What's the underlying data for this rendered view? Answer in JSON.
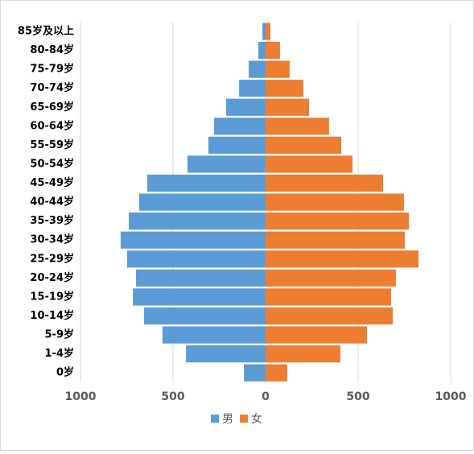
{
  "chart_data": {
    "type": "pyramid",
    "categories": [
      "85岁及以上",
      "80-84岁",
      "75-79岁",
      "70-74岁",
      "65-69岁",
      "60-64岁",
      "55-59岁",
      "50-54岁",
      "45-49岁",
      "40-44岁",
      "35-39岁",
      "30-34岁",
      "25-29岁",
      "20-24岁",
      "15-19岁",
      "10-14岁",
      "5-9岁",
      "1-4岁",
      "0岁"
    ],
    "series": [
      {
        "name": "男",
        "color": "#5b9bd5",
        "values": [
          -17,
          -39,
          -91,
          -143,
          -213,
          -278,
          -309,
          -422,
          -639,
          -683,
          -739,
          -783,
          -748,
          -700,
          -717,
          -657,
          -557,
          -430,
          -117
        ]
      },
      {
        "name": "女",
        "color": "#ed7d31",
        "values": [
          26,
          78,
          130,
          204,
          235,
          343,
          409,
          470,
          635,
          748,
          774,
          752,
          826,
          704,
          678,
          687,
          548,
          404,
          117
        ]
      }
    ],
    "xlim": [
      -1000,
      1000
    ],
    "xticks": [
      {
        "value": -1000,
        "label": "1000"
      },
      {
        "value": -500,
        "label": "500"
      },
      0,
      500,
      1000
    ],
    "grid": true,
    "legend": "bottom"
  }
}
